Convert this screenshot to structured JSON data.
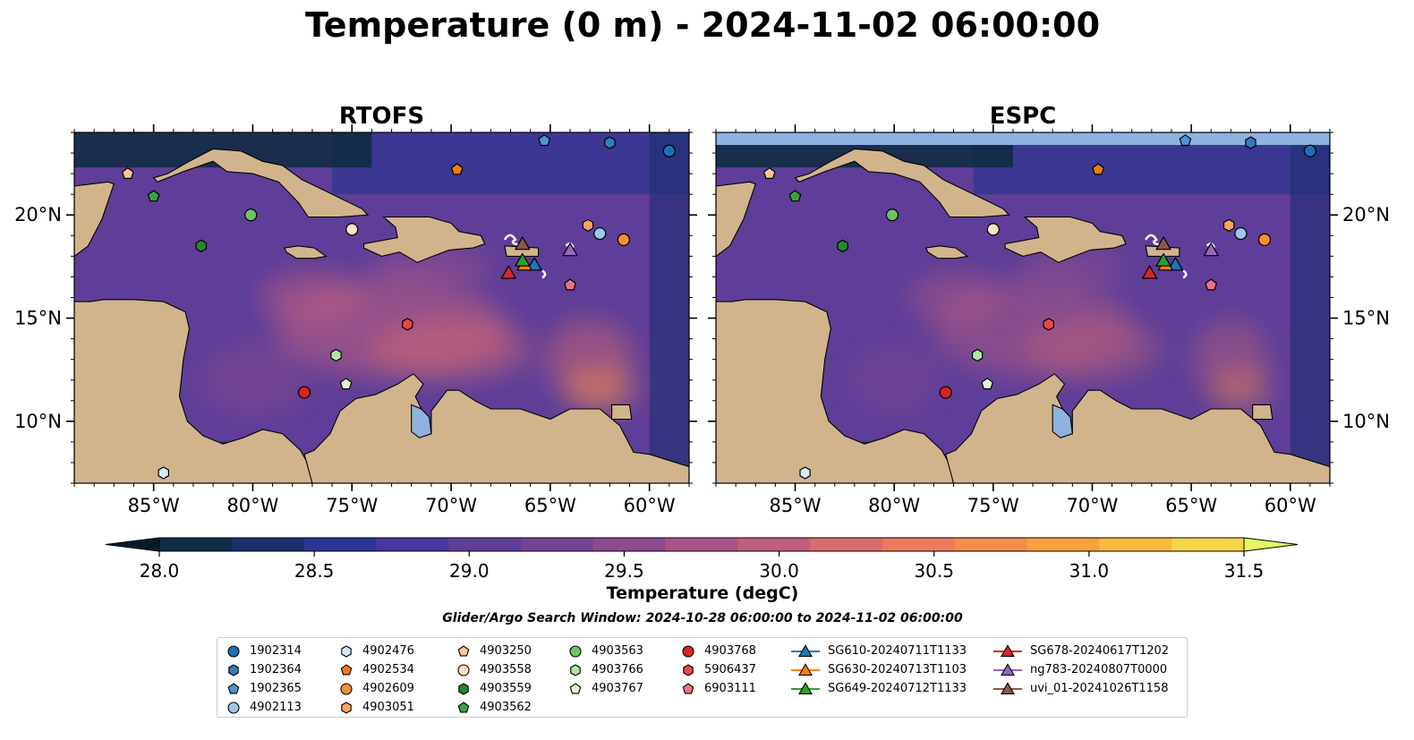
{
  "title": "Temperature (0 m) - 2024-11-02 06:00:00",
  "panels": [
    {
      "name": "RTOFS"
    },
    {
      "name": "ESPC"
    }
  ],
  "map": {
    "lon_range": [
      -89,
      -58
    ],
    "lat_range": [
      7,
      24
    ],
    "lon_ticks": [
      {
        "value": -85,
        "label": "85°W"
      },
      {
        "value": -80,
        "label": "80°W"
      },
      {
        "value": -75,
        "label": "75°W"
      },
      {
        "value": -70,
        "label": "70°W"
      },
      {
        "value": -65,
        "label": "65°W"
      },
      {
        "value": -60,
        "label": "60°W"
      }
    ],
    "lat_ticks": [
      {
        "value": 20,
        "label": "20°N"
      },
      {
        "value": 15,
        "label": "15°N"
      },
      {
        "value": 10,
        "label": "10°N"
      }
    ],
    "land_color": "#d2b48c",
    "ocean_deep_color": "#0d2a40"
  },
  "colorbar": {
    "label": "Temperature (degC)",
    "min": 28.0,
    "max": 31.5,
    "ticks": [
      "28.0",
      "28.5",
      "29.0",
      "29.5",
      "30.0",
      "30.5",
      "31.0",
      "31.5"
    ],
    "colors": [
      "#0f2d47",
      "#1d2f6f",
      "#2d3592",
      "#47389c",
      "#5e3e98",
      "#744493",
      "#8b4b8e",
      "#a5548a",
      "#c05e7f",
      "#d96c6c",
      "#ec7b5b",
      "#f48d4a",
      "#f8a23f",
      "#f8ba3e",
      "#f5d64a"
    ],
    "under_color": "#061b2a",
    "over_color": "#e5f763"
  },
  "search_window": "Glider/Argo Search Window: 2024-10-28 06:00:00 to 2024-11-02 06:00:00",
  "legend": {
    "columns": [
      [
        {
          "label": "1902314",
          "marker": "circle",
          "color": "#1f6eb4"
        },
        {
          "label": "1902364",
          "marker": "hexagon",
          "color": "#2e7fbd"
        },
        {
          "label": "1902365",
          "marker": "pentagon",
          "color": "#4a96cf"
        },
        {
          "label": "4902113",
          "marker": "circle",
          "color": "#9ac8ec"
        }
      ],
      [
        {
          "label": "4902476",
          "marker": "hexagon",
          "color": "#d6eaf8"
        },
        {
          "label": "4902534",
          "marker": "pentagon",
          "color": "#f07a11"
        },
        {
          "label": "4902609",
          "marker": "circle",
          "color": "#fb8e33"
        },
        {
          "label": "4903051",
          "marker": "hexagon",
          "color": "#fca360"
        }
      ],
      [
        {
          "label": "4903250",
          "marker": "pentagon",
          "color": "#fdc48f"
        },
        {
          "label": "4903558",
          "marker": "circle",
          "color": "#fde2c7"
        },
        {
          "label": "4903559",
          "marker": "hexagon",
          "color": "#24882f"
        },
        {
          "label": "4903562",
          "marker": "pentagon",
          "color": "#3aa33f"
        }
      ],
      [
        {
          "label": "4903563",
          "marker": "circle",
          "color": "#6cc565"
        },
        {
          "label": "4903766",
          "marker": "hexagon",
          "color": "#aee5a0"
        },
        {
          "label": "4903767",
          "marker": "pentagon",
          "color": "#dcf5d2"
        }
      ],
      [
        {
          "label": "4903768",
          "marker": "circle",
          "color": "#d32626"
        },
        {
          "label": "5906437",
          "marker": "hexagon",
          "color": "#e84848"
        },
        {
          "label": "6903111",
          "marker": "pentagon",
          "color": "#f07282"
        }
      ],
      [
        {
          "label": "SG610-20240711T1133",
          "marker": "triangle",
          "color": "#1f77b4"
        },
        {
          "label": "SG630-20240713T1103",
          "marker": "triangle",
          "color": "#ff7f0e"
        },
        {
          "label": "SG649-20240712T1133",
          "marker": "triangle",
          "color": "#2ca02c"
        }
      ],
      [
        {
          "label": "SG678-20240617T1202",
          "marker": "triangle",
          "color": "#d62728"
        },
        {
          "label": "ng783-20240807T0000",
          "marker": "triangle",
          "color": "#9467bd"
        },
        {
          "label": "uvi_01-20241026T1158",
          "marker": "triangle",
          "color": "#8c564b"
        }
      ]
    ]
  },
  "floats": [
    {
      "id": "1902314",
      "lon": -59.0,
      "lat": 23.1
    },
    {
      "id": "1902364",
      "lon": -62.0,
      "lat": 23.5
    },
    {
      "id": "1902365",
      "lon": -65.3,
      "lat": 23.6
    },
    {
      "id": "4902113",
      "lon": -62.5,
      "lat": 19.1
    },
    {
      "id": "4902476",
      "lon": -84.5,
      "lat": 7.5
    },
    {
      "id": "4902534",
      "lon": -69.7,
      "lat": 22.2
    },
    {
      "id": "4902609",
      "lon": -61.3,
      "lat": 18.8
    },
    {
      "id": "4903051",
      "lon": -63.1,
      "lat": 19.5
    },
    {
      "id": "4903250",
      "lon": -86.3,
      "lat": 22.0
    },
    {
      "id": "4903558",
      "lon": -75.0,
      "lat": 19.3
    },
    {
      "id": "4903559",
      "lon": -82.6,
      "lat": 18.5
    },
    {
      "id": "4903562",
      "lon": -85.0,
      "lat": 20.9
    },
    {
      "id": "4903563",
      "lon": -80.1,
      "lat": 20.0
    },
    {
      "id": "4903766",
      "lon": -75.8,
      "lat": 13.2
    },
    {
      "id": "4903767",
      "lon": -75.3,
      "lat": 11.8
    },
    {
      "id": "4903768",
      "lon": -77.4,
      "lat": 11.4
    },
    {
      "id": "5906437",
      "lon": -72.2,
      "lat": 14.7
    },
    {
      "id": "6903111",
      "lon": -64.0,
      "lat": 16.6
    }
  ],
  "gliders": [
    {
      "id": "SG610-20240711T1133",
      "lon": -65.8,
      "lat": 17.6
    },
    {
      "id": "SG630-20240713T1103",
      "lon": -66.3,
      "lat": 17.6
    },
    {
      "id": "SG649-20240712T1133",
      "lon": -66.4,
      "lat": 17.8
    },
    {
      "id": "SG678-20240617T1202",
      "lon": -67.1,
      "lat": 17.2
    },
    {
      "id": "ng783-20240807T0000",
      "lon": -64.0,
      "lat": 18.3
    },
    {
      "id": "uvi_01-20241026T1158",
      "lon": -66.4,
      "lat": 18.6
    }
  ]
}
